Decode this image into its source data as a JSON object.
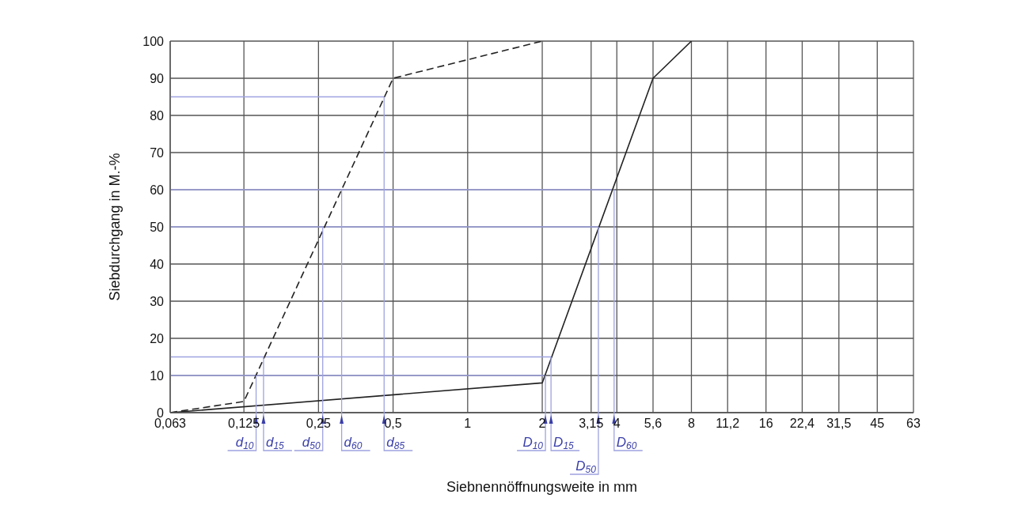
{
  "chart_data": {
    "type": "line",
    "xlabel": "Siebnennöffnungsweite in mm",
    "ylabel": "Siebdurchgang in M.-%",
    "log": "x",
    "grid": true,
    "marker": "none",
    "ref_lines": [
      {
        "axis": "y",
        "value": 10,
        "color": "#9fa3e0"
      },
      {
        "axis": "y",
        "value": 15,
        "color": "#9fa3e0"
      },
      {
        "axis": "y",
        "value": 50,
        "color": "#9fa3e0"
      },
      {
        "axis": "y",
        "value": 60,
        "color": "#9fa3e0"
      },
      {
        "axis": "y",
        "value": 85,
        "color": "#9fa3e0"
      }
    ],
    "xlim": [
      0.063,
      63
    ],
    "xticks": [
      {
        "value": 0.063,
        "label": "0,063"
      },
      {
        "value": 0.125,
        "label": "0,125"
      },
      {
        "value": 0.25,
        "label": "0,25"
      },
      {
        "value": 0.5,
        "label": "0,5"
      },
      1,
      2,
      {
        "value": 3.15,
        "label": "3,15"
      },
      4,
      {
        "value": 5.6,
        "label": "5,6"
      },
      8,
      {
        "value": 11.2,
        "label": "11,2"
      },
      16,
      {
        "value": 22.4,
        "label": "22,4"
      },
      {
        "value": 31.5,
        "label": "31,5"
      },
      45,
      63
    ],
    "ylim": [
      0,
      100
    ],
    "yticks": [
      0,
      10,
      20,
      30,
      40,
      50,
      60,
      70,
      80,
      90,
      100
    ],
    "series": [
      {
        "color": "#222222",
        "line_style": "dashed",
        "x": [
          0.063,
          0.125,
          0.5,
          2
        ],
        "values": [
          0,
          3,
          90,
          100
        ]
      },
      {
        "color": "#222222",
        "line_style": "solid",
        "x": [
          0.063,
          2,
          5.6,
          8
        ],
        "values": [
          0,
          8,
          90,
          100
        ]
      }
    ],
    "annotations": [
      {
        "text": "d$_{10}$",
        "x": 0.14,
        "y": 10
      },
      {
        "text": "d$_{15}$",
        "x": 0.15,
        "y": 15
      },
      {
        "text": "d$_{50}$",
        "x": 0.26,
        "y": 50
      },
      {
        "text": "d$_{60}$",
        "x": 0.31,
        "y": 60
      },
      {
        "text": "d$_{85}$",
        "x": 0.46,
        "y": 85
      },
      {
        "text": "D$_{10}$",
        "x": 2.06,
        "y": 10
      },
      {
        "text": "D$_{15}$",
        "x": 2.17,
        "y": 15
      },
      {
        "text": "D$_{50}$",
        "x": 3.37,
        "y": 50
      },
      {
        "text": "D$_{60}$",
        "x": 3.9,
        "y": 60
      }
    ]
  }
}
